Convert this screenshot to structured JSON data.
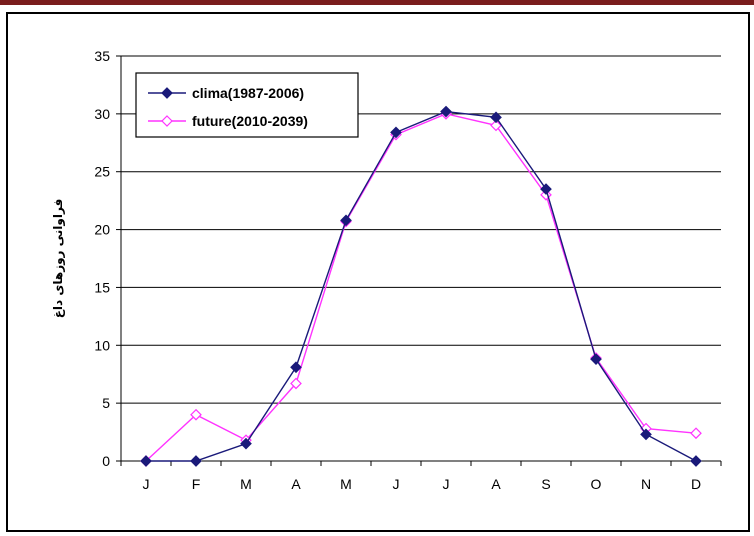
{
  "chart_data": {
    "type": "line",
    "title": "",
    "xlabel": "",
    "ylabel": "فراوانی روزهای داغ",
    "categories": [
      "J",
      "F",
      "M",
      "A",
      "M",
      "J",
      "J",
      "A",
      "S",
      "O",
      "N",
      "D"
    ],
    "ylim": [
      0,
      35
    ],
    "yticks": [
      0,
      5,
      10,
      15,
      20,
      25,
      30,
      35
    ],
    "grid": true,
    "legend": "top-left",
    "series": [
      {
        "name": "clima(1987-2006)",
        "color": "#1a1a7a",
        "marker": "filled-diamond",
        "values": [
          0,
          0,
          1.5,
          8.1,
          20.8,
          28.4,
          30.2,
          29.7,
          23.5,
          8.8,
          2.3,
          0
        ]
      },
      {
        "name": "future(2010-2039)",
        "color": "#ff33ff",
        "marker": "open-diamond",
        "values": [
          0,
          4,
          1.8,
          6.7,
          20.7,
          28.2,
          30.0,
          29.0,
          23.0,
          8.9,
          2.8,
          2.4
        ]
      }
    ]
  }
}
